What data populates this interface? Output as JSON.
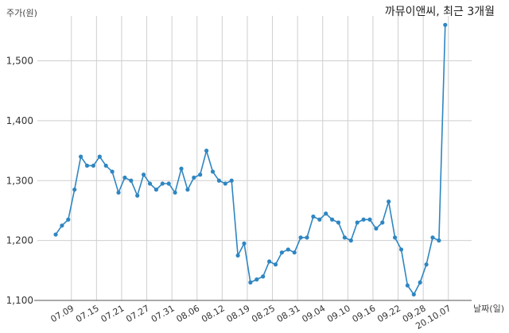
{
  "chart_data": {
    "type": "line",
    "title": "까뮤이앤씨, 최근 3개월",
    "ylabel": "주가(원)",
    "xlabel": "날짜(일)",
    "ylim": [
      1100,
      1575
    ],
    "yticks": [
      1100,
      1200,
      1300,
      1400,
      1500
    ],
    "ytick_labels": [
      "1,100",
      "1,200",
      "1,300",
      "1,400",
      "1,500"
    ],
    "grid": true,
    "xtick_labels": [
      "07.09",
      "07.15",
      "07.21",
      "07.27",
      "07.31",
      "08.06",
      "08.12",
      "08.19",
      "08.25",
      "08.31",
      "09.04",
      "09.10",
      "09.16",
      "09.22",
      "09.28",
      "20.10.07"
    ],
    "xtick_positions": [
      2.5,
      6.5,
      10.5,
      14.5,
      18.5,
      22.5,
      26.5,
      30.5,
      34.5,
      38.5,
      42.5,
      46.5,
      50.5,
      54.5,
      58.5,
      62.5
    ],
    "series": [
      {
        "color": "#2e86c1",
        "values": [
          1210,
          1225,
          1235,
          1285,
          1340,
          1325,
          1325,
          1340,
          1325,
          1315,
          1280,
          1305,
          1300,
          1275,
          1310,
          1295,
          1285,
          1295,
          1295,
          1280,
          1320,
          1285,
          1305,
          1310,
          1350,
          1315,
          1300,
          1295,
          1300,
          1175,
          1195,
          1130,
          1135,
          1140,
          1165,
          1160,
          1180,
          1185,
          1180,
          1205,
          1205,
          1240,
          1235,
          1245,
          1235,
          1230,
          1205,
          1200,
          1230,
          1235,
          1235,
          1220,
          1230,
          1265,
          1205,
          1185,
          1125,
          1110,
          1130,
          1160,
          1205,
          1200,
          1560
        ]
      }
    ]
  }
}
